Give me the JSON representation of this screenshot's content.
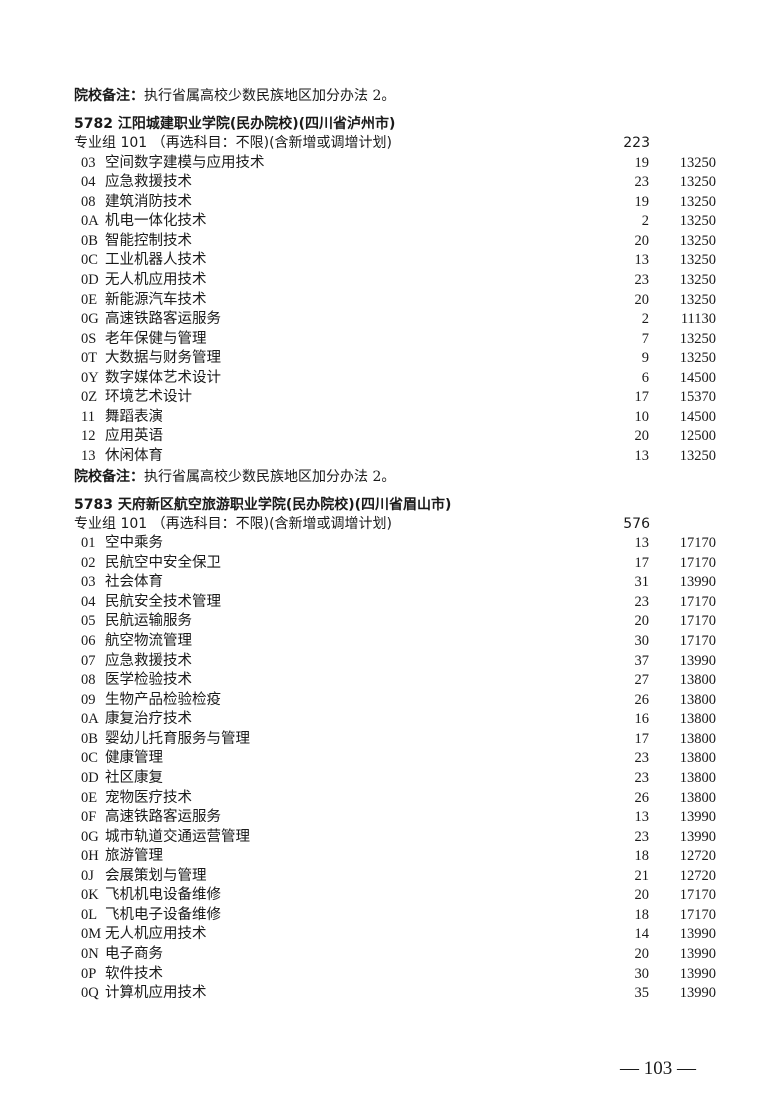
{
  "top_note": {
    "label": "院校备注：",
    "text": "执行省属高校少数民族地区加分办法 2。"
  },
  "schools": [
    {
      "title": "5782 江阳城建职业学院(民办院校)(四川省泸州市)",
      "group": {
        "label": "专业组 101 （再选科目：不限)(含新增或调增计划)",
        "count": "223"
      },
      "majors": [
        {
          "code": "03",
          "name": "空间数字建模与应用技术",
          "count": "19",
          "fee": "13250"
        },
        {
          "code": "04",
          "name": "应急救援技术",
          "count": "23",
          "fee": "13250"
        },
        {
          "code": "08",
          "name": "建筑消防技术",
          "count": "19",
          "fee": "13250"
        },
        {
          "code": "0A",
          "name": "机电一体化技术",
          "count": "2",
          "fee": "13250"
        },
        {
          "code": "0B",
          "name": "智能控制技术",
          "count": "20",
          "fee": "13250"
        },
        {
          "code": "0C",
          "name": "工业机器人技术",
          "count": "13",
          "fee": "13250"
        },
        {
          "code": "0D",
          "name": "无人机应用技术",
          "count": "23",
          "fee": "13250"
        },
        {
          "code": "0E",
          "name": "新能源汽车技术",
          "count": "20",
          "fee": "13250"
        },
        {
          "code": "0G",
          "name": "高速铁路客运服务",
          "count": "2",
          "fee": "11130"
        },
        {
          "code": "0S",
          "name": "老年保健与管理",
          "count": "7",
          "fee": "13250"
        },
        {
          "code": "0T",
          "name": "大数据与财务管理",
          "count": "9",
          "fee": "13250"
        },
        {
          "code": "0Y",
          "name": "数字媒体艺术设计",
          "count": "6",
          "fee": "14500"
        },
        {
          "code": "0Z",
          "name": "环境艺术设计",
          "count": "17",
          "fee": "15370"
        },
        {
          "code": "11",
          "name": "舞蹈表演",
          "count": "10",
          "fee": "14500"
        },
        {
          "code": "12",
          "name": "应用英语",
          "count": "20",
          "fee": "12500"
        },
        {
          "code": "13",
          "name": "休闲体育",
          "count": "13",
          "fee": "13250"
        }
      ],
      "note": {
        "label": "院校备注：",
        "text": "执行省属高校少数民族地区加分办法 2。"
      }
    },
    {
      "title": "5783 天府新区航空旅游职业学院(民办院校)(四川省眉山市)",
      "group": {
        "label": "专业组 101 （再选科目：不限)(含新增或调增计划)",
        "count": "576"
      },
      "majors": [
        {
          "code": "01",
          "name": "空中乘务",
          "count": "13",
          "fee": "17170"
        },
        {
          "code": "02",
          "name": "民航空中安全保卫",
          "count": "17",
          "fee": "17170"
        },
        {
          "code": "03",
          "name": "社会体育",
          "count": "31",
          "fee": "13990"
        },
        {
          "code": "04",
          "name": "民航安全技术管理",
          "count": "23",
          "fee": "17170"
        },
        {
          "code": "05",
          "name": "民航运输服务",
          "count": "20",
          "fee": "17170"
        },
        {
          "code": "06",
          "name": "航空物流管理",
          "count": "30",
          "fee": "17170"
        },
        {
          "code": "07",
          "name": "应急救援技术",
          "count": "37",
          "fee": "13990"
        },
        {
          "code": "08",
          "name": "医学检验技术",
          "count": "27",
          "fee": "13800"
        },
        {
          "code": "09",
          "name": "生物产品检验检疫",
          "count": "26",
          "fee": "13800"
        },
        {
          "code": "0A",
          "name": "康复治疗技术",
          "count": "16",
          "fee": "13800"
        },
        {
          "code": "0B",
          "name": "婴幼儿托育服务与管理",
          "count": "17",
          "fee": "13800"
        },
        {
          "code": "0C",
          "name": "健康管理",
          "count": "23",
          "fee": "13800"
        },
        {
          "code": "0D",
          "name": "社区康复",
          "count": "23",
          "fee": "13800"
        },
        {
          "code": "0E",
          "name": "宠物医疗技术",
          "count": "26",
          "fee": "13800"
        },
        {
          "code": "0F",
          "name": "高速铁路客运服务",
          "count": "13",
          "fee": "13990"
        },
        {
          "code": "0G",
          "name": "城市轨道交通运营管理",
          "count": "23",
          "fee": "13990"
        },
        {
          "code": "0H",
          "name": "旅游管理",
          "count": "18",
          "fee": "12720"
        },
        {
          "code": "0J",
          "name": "会展策划与管理",
          "count": "21",
          "fee": "12720"
        },
        {
          "code": "0K",
          "name": "飞机机电设备维修",
          "count": "20",
          "fee": "17170"
        },
        {
          "code": "0L",
          "name": "飞机电子设备维修",
          "count": "18",
          "fee": "17170"
        },
        {
          "code": "0M",
          "name": "无人机应用技术",
          "count": "14",
          "fee": "13990"
        },
        {
          "code": "0N",
          "name": "电子商务",
          "count": "20",
          "fee": "13990"
        },
        {
          "code": "0P",
          "name": "软件技术",
          "count": "30",
          "fee": "13990"
        },
        {
          "code": "0Q",
          "name": "计算机应用技术",
          "count": "35",
          "fee": "13990"
        }
      ]
    }
  ],
  "page_number": "— 103 —"
}
